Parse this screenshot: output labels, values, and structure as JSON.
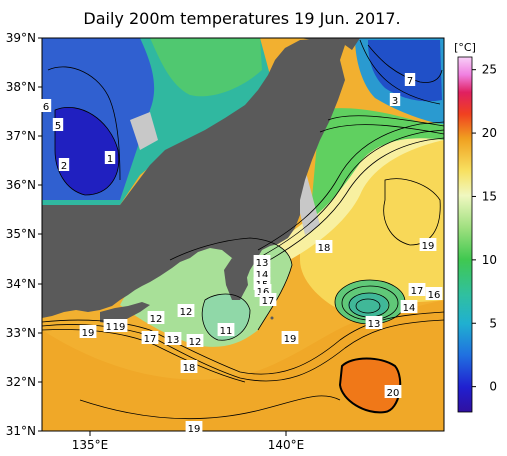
{
  "title": "Daily 200m temperatures 19 Jun. 2017.",
  "lat_labels": [
    "39°N",
    "38°N",
    "37°N",
    "36°N",
    "35°N",
    "34°N",
    "33°N",
    "32°N",
    "31°N"
  ],
  "lon_labels": [
    "135°E",
    "140°E"
  ],
  "colorbar": {
    "unit": "[°C]",
    "ticks": [
      "25",
      "20",
      "15",
      "10",
      "5",
      "0"
    ],
    "range": [
      -2,
      26
    ]
  },
  "contour_labels": [
    {
      "text": "6"
    },
    {
      "text": "5"
    },
    {
      "text": "2"
    },
    {
      "text": "1"
    },
    {
      "text": "7"
    },
    {
      "text": "3"
    },
    {
      "text": "18"
    },
    {
      "text": "19"
    },
    {
      "text": "13"
    },
    {
      "text": "14"
    },
    {
      "text": "15"
    },
    {
      "text": "16"
    },
    {
      "text": "17"
    },
    {
      "text": "12"
    },
    {
      "text": "12"
    },
    {
      "text": "11"
    },
    {
      "text": "19"
    },
    {
      "text": "17"
    },
    {
      "text": "16"
    },
    {
      "text": "13"
    },
    {
      "text": "14"
    },
    {
      "text": "17"
    },
    {
      "text": "13"
    },
    {
      "text": "12"
    },
    {
      "text": "18"
    },
    {
      "text": "19"
    },
    {
      "text": "16"
    },
    {
      "text": "19"
    },
    {
      "text": "20"
    },
    {
      "text": "19"
    }
  ],
  "colors": {
    "land": "#5a5a5a",
    "no_data": "#c8c8c8",
    "frame": "#000000"
  }
}
